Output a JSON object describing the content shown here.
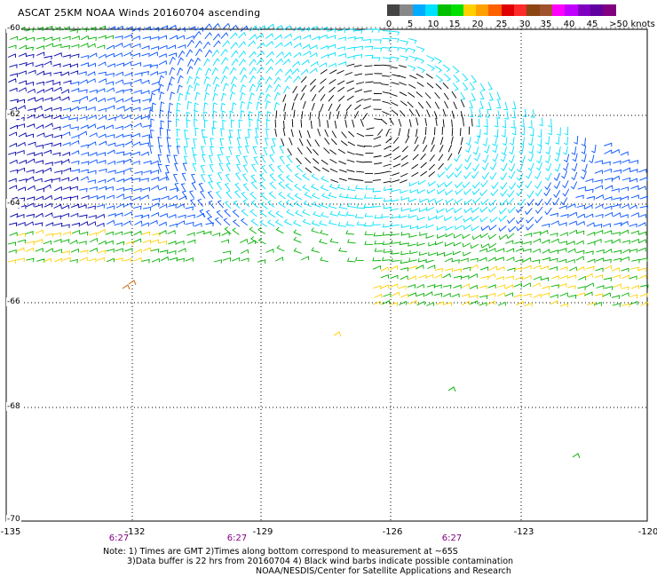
{
  "title": "ASCAT 25KM NOAA Winds 20160704 ascending",
  "legend": {
    "colors": [
      "#444444",
      "#888888",
      "#00aaff",
      "#00e0ff",
      "#00c000",
      "#00e000",
      "#ffd000",
      "#ffa000",
      "#ff6000",
      "#e00000",
      "#ff2a2a",
      "#8b4513",
      "#a0522d",
      "#ff00ff",
      "#c000ff",
      "#8000c0",
      "#6000a0",
      "#800080"
    ],
    "ticks": [
      "0",
      "5",
      "10",
      "15",
      "20",
      "25",
      "30",
      "35",
      "40",
      "45",
      ">50 knots"
    ]
  },
  "lat_labels": [
    "-60",
    "-62",
    "-64",
    "-66",
    "-68",
    "-70"
  ],
  "lon_labels": [
    "-135",
    "-132",
    "-129",
    "-126",
    "-123",
    "-120"
  ],
  "time_labels": [
    "6:27",
    "6:27",
    "6:27"
  ],
  "notes": [
    "Note: 1) Times are GMT 2)Times along bottom correspond to measurement at ~65S",
    "3)Data buffer is 22 hrs from 20160704 4) Black wind barbs indicate possible contamination",
    "NOAA/NESDIS/Center for Satellite Applications and Research"
  ],
  "wind_colors": {
    "calm": "#000000",
    "light": "#00e0ff",
    "moderate": "#0050ff",
    "strong": "#0000aa",
    "green": "#00b000",
    "yellow": "#ffd000",
    "orange": "#d06000"
  }
}
